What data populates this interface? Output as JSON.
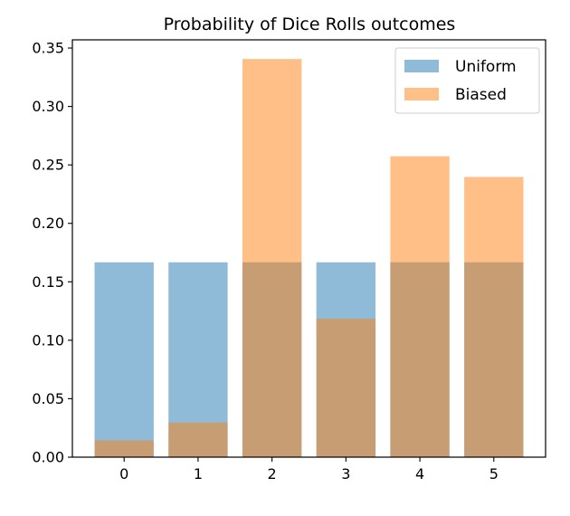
{
  "chart_data": {
    "type": "bar",
    "title": "Probability of Dice Rolls outcomes",
    "xlabel": "",
    "ylabel": "",
    "categories": [
      "0",
      "1",
      "2",
      "3",
      "4",
      "5"
    ],
    "yticks": [
      "0.00",
      "0.05",
      "0.10",
      "0.15",
      "0.20",
      "0.25",
      "0.30",
      "0.35"
    ],
    "ylim": [
      0,
      0.357
    ],
    "grid": false,
    "legend_position": "top-right",
    "series": [
      {
        "name": "Uniform",
        "color": "#1f77b4",
        "opacity": 0.5,
        "values": [
          0.1667,
          0.1667,
          0.1667,
          0.1667,
          0.1667,
          0.1667
        ]
      },
      {
        "name": "Biased",
        "color": "#ff7f0e",
        "opacity": 0.5,
        "values": [
          0.0143,
          0.0296,
          0.3406,
          0.1184,
          0.2574,
          0.2397
        ]
      }
    ]
  }
}
